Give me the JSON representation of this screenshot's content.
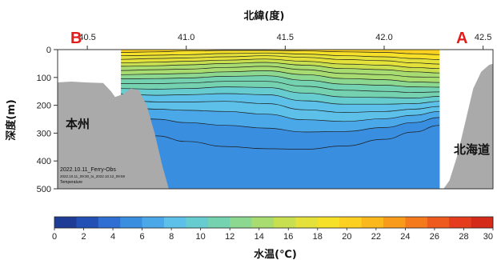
{
  "chart_data": {
    "type": "heatmap",
    "title": "北緯(度)",
    "x_axis": {
      "label": "北緯(度)",
      "position": "top",
      "range": [
        40.35,
        42.55
      ],
      "ticks": [
        40.5,
        41.0,
        41.5,
        42.0,
        42.5
      ],
      "tick_labels": [
        "40.5",
        "41.0",
        "41.5",
        "42.0",
        "42.5"
      ]
    },
    "y_axis": {
      "label": "深度(m)",
      "range": [
        0,
        500
      ],
      "inverted": true,
      "ticks": [
        0,
        100,
        200,
        300,
        400,
        500
      ],
      "tick_labels": [
        "0",
        "100",
        "200",
        "300",
        "400",
        "500"
      ]
    },
    "endpoints": {
      "left": "B",
      "right": "A"
    },
    "land_labels": {
      "honshu": "本州",
      "hokkaido": "北海道"
    },
    "annotation": {
      "line1": "2022.10.11_Ferry-Obs",
      "line2": "2022.10.11_09:30_to_2022.10.12_09:59",
      "line3": "Temperature"
    },
    "colorbar": {
      "label": "水温(℃)",
      "range": [
        0,
        30
      ],
      "ticks": [
        0,
        2,
        4,
        6,
        8,
        10,
        12,
        14,
        16,
        18,
        20,
        22,
        24,
        26,
        28,
        30
      ],
      "tick_labels": [
        "0",
        "2",
        "4",
        "6",
        "8",
        "10",
        "12",
        "14",
        "16",
        "18",
        "20",
        "22",
        "24",
        "26",
        "28",
        "30"
      ]
    },
    "section_extent_lat": [
      40.67,
      42.28
    ],
    "isotherms_depth_at_latitude": {
      "latitudes": [
        40.67,
        40.85,
        41.0,
        41.2,
        41.4,
        41.6,
        41.8,
        42.0,
        42.15,
        42.28
      ],
      "temperatures": [
        19,
        18,
        17,
        16,
        15,
        14,
        13,
        12,
        11,
        10,
        9,
        8,
        7,
        6,
        5
      ],
      "depths": [
        [
          10,
          8,
          5,
          3,
          3,
          5,
          8,
          10,
          15,
          18
        ],
        [
          22,
          20,
          18,
          14,
          12,
          16,
          22,
          26,
          32,
          36
        ],
        [
          35,
          32,
          30,
          26,
          22,
          28,
          36,
          40,
          48,
          52
        ],
        [
          48,
          45,
          42,
          38,
          34,
          42,
          52,
          56,
          64,
          68
        ],
        [
          60,
          58,
          55,
          50,
          46,
          56,
          68,
          72,
          80,
          84
        ],
        [
          75,
          72,
          70,
          64,
          60,
          72,
          86,
          90,
          98,
          100
        ],
        [
          90,
          88,
          86,
          80,
          76,
          90,
          104,
          108,
          116,
          118
        ],
        [
          105,
          104,
          102,
          96,
          94,
          110,
          124,
          128,
          134,
          135
        ],
        [
          122,
          122,
          120,
          114,
          114,
          132,
          146,
          150,
          154,
          152
        ],
        [
          140,
          142,
          140,
          134,
          136,
          156,
          170,
          172,
          174,
          168
        ],
        [
          160,
          164,
          162,
          158,
          162,
          184,
          196,
          196,
          194,
          186
        ],
        [
          180,
          188,
          188,
          186,
          194,
          216,
          226,
          222,
          214,
          204
        ],
        [
          205,
          214,
          218,
          222,
          232,
          252,
          258,
          248,
          236,
          222
        ],
        [
          240,
          250,
          262,
          272,
          282,
          296,
          294,
          280,
          262,
          244
        ],
        [
          290,
          310,
          330,
          348,
          356,
          358,
          346,
          322,
          296,
          272
        ]
      ]
    }
  },
  "colors": {
    "colorbar_stops": [
      "#1e3c96",
      "#2350b4",
      "#2f6ed2",
      "#3a8ee0",
      "#4aa8e8",
      "#5cc0e8",
      "#66ccd0",
      "#74d2b0",
      "#8cd890",
      "#a8dc70",
      "#c8e050",
      "#e4e23a",
      "#f6e028",
      "#fbd020",
      "#fab81c",
      "#f89a1a",
      "#f47a1c",
      "#ee5a1e",
      "#e63c1e",
      "#d42a1a"
    ],
    "land": "#aaaaaa",
    "contour": "#1c1c1c",
    "endpoint_label": "#e21b1b"
  }
}
